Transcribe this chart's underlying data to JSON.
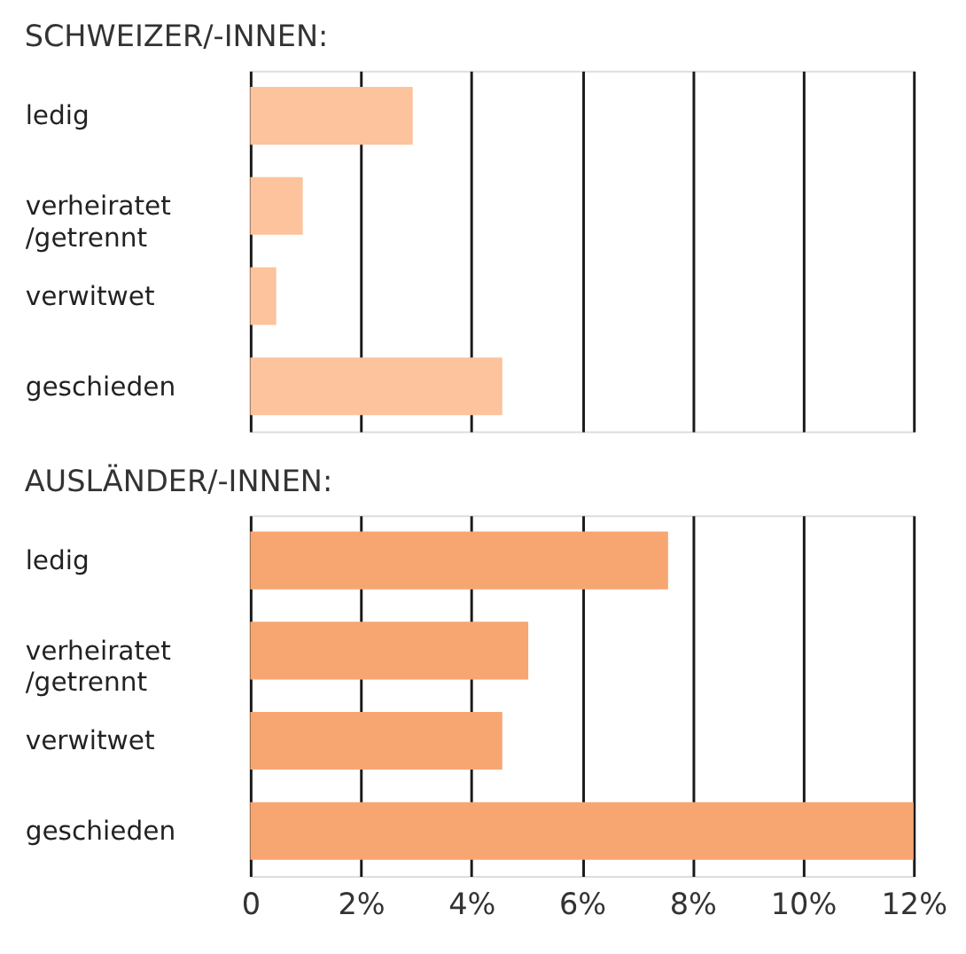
{
  "chart_data": [
    {
      "type": "bar",
      "orientation": "horizontal",
      "title": "SCHWEIZER/-INNEN:",
      "categories": [
        "ledig",
        "verheiratet\n/getrennt",
        "verwitwet",
        "geschieden"
      ],
      "values": [
        2.94,
        0.95,
        0.47,
        4.56
      ],
      "color": "#fcc39c",
      "xlim": [
        0,
        12
      ],
      "xticks": [
        {
          "value": 0,
          "label": null
        },
        {
          "value": 2,
          "label": null
        },
        {
          "value": 4,
          "label": null
        },
        {
          "value": 6,
          "label": null
        },
        {
          "value": 8,
          "label": null
        },
        {
          "value": 10,
          "label": null
        },
        {
          "value": 12,
          "label": null
        }
      ],
      "grid": "x",
      "tick_labels": "y"
    },
    {
      "type": "bar",
      "orientation": "horizontal",
      "title": "AUSLÄNDER/-INNEN:",
      "categories": [
        "ledig",
        "verheiratet\n/getrennt",
        "verwitwet",
        "geschieden"
      ],
      "values": [
        7.56,
        5.03,
        4.56,
        12.0
      ],
      "color": "#f7a672",
      "xlim": [
        0,
        12
      ],
      "xticks": [
        0,
        {
          "value": 2,
          "label": "2%"
        },
        {
          "value": 4,
          "label": "4%"
        },
        {
          "value": 6,
          "label": "6%"
        },
        {
          "value": 8,
          "label": "8%"
        },
        {
          "value": 10,
          "label": "10%"
        },
        {
          "value": 12,
          "label": "12%"
        }
      ],
      "grid": "x"
    }
  ]
}
